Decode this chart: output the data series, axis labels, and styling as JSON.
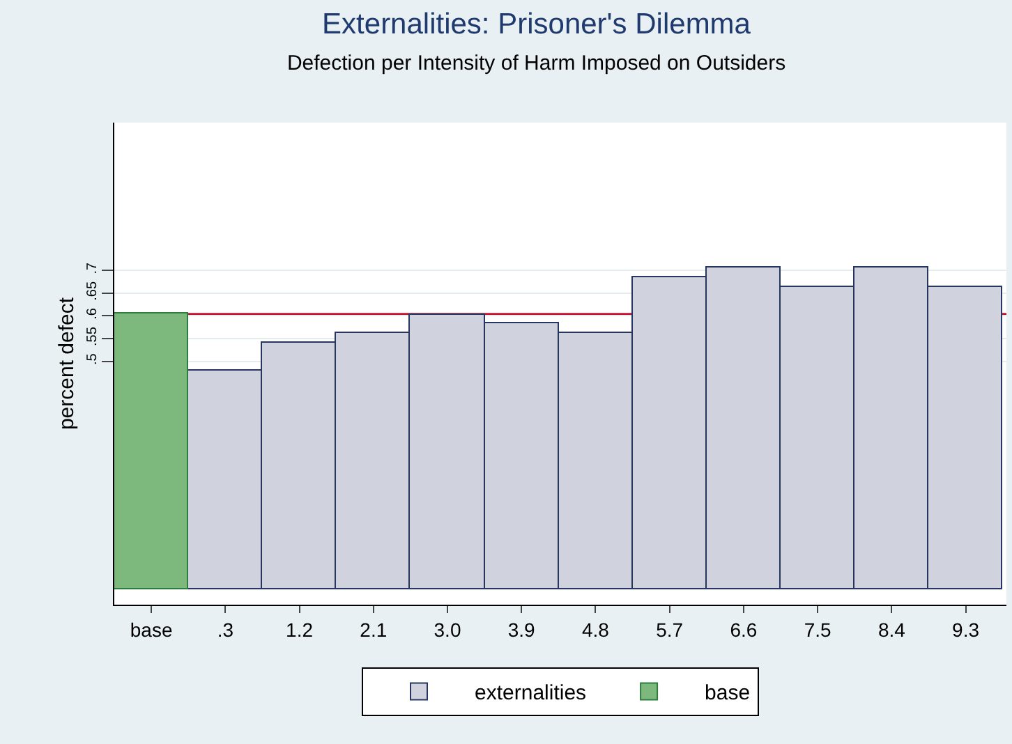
{
  "chart_data": {
    "type": "bar",
    "title": "Externalities: Prisoner's Dilemma",
    "subtitle": "Defection per Intensity of Harm Imposed on Outsiders",
    "ylabel": "percent defect",
    "categories": [
      "base",
      ".3",
      "1.2",
      "2.1",
      "3.0",
      "3.9",
      "4.8",
      "5.7",
      "6.6",
      "7.5",
      "8.4",
      "9.3"
    ],
    "series": [
      {
        "name": "externalities",
        "color": "#d0d3de",
        "values": [
          null,
          0.481,
          0.542,
          0.562,
          0.602,
          0.584,
          0.562,
          0.686,
          0.707,
          0.665,
          0.707,
          0.665
        ]
      },
      {
        "name": "base",
        "color": "#7db87d",
        "values": [
          0.604,
          null,
          null,
          null,
          null,
          null,
          null,
          null,
          null,
          null,
          null,
          null
        ]
      }
    ],
    "ylim": [
      -0.035,
      1.025
    ],
    "yticks": [
      {
        "value": 0.5,
        "label": ".5"
      },
      {
        "value": 0.55,
        "label": ".55"
      },
      {
        "value": 0.6,
        "label": ".6"
      },
      {
        "value": 0.65,
        "label": ".65"
      },
      {
        "value": 0.7,
        "label": ".7"
      }
    ],
    "ref_lines": [
      {
        "axis": "y",
        "value": 0.604,
        "color": "#c8102e"
      }
    ],
    "grid": "y",
    "legend": "bottom"
  }
}
